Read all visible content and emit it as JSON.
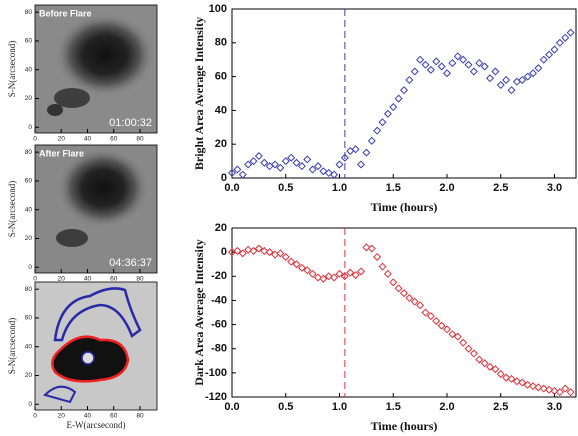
{
  "chart_data": [
    {
      "type": "image",
      "title": "Before Flare",
      "timestamp": "01:00:32",
      "ylabel": "S-N(arcsecond)",
      "xlim": [
        0,
        93
      ],
      "ylim": [
        -4,
        85
      ],
      "xticks": [
        0,
        20,
        40,
        60,
        80
      ],
      "yticks": [
        0,
        20,
        40,
        60,
        80
      ]
    },
    {
      "type": "image",
      "title": "After Flare",
      "timestamp": "04:36:37",
      "ylabel": "S-N(arcsecond)",
      "xlim": [
        0,
        93
      ],
      "ylim": [
        -4,
        85
      ],
      "xticks": [
        0,
        20,
        40,
        60,
        80
      ],
      "yticks": [
        0,
        20,
        40,
        60,
        80
      ]
    },
    {
      "type": "image",
      "ylabel": "S-N(arcsecond)",
      "xlabel": "E-W(arcsecond)",
      "xlim": [
        0,
        93
      ],
      "ylim": [
        -4,
        85
      ],
      "xticks": [
        0,
        20,
        40,
        60,
        80
      ],
      "yticks": [
        0,
        20,
        40,
        60,
        80
      ]
    },
    {
      "type": "scatter",
      "xlabel": "Time (hours)",
      "ylabel": "Bright Area Average Intensity",
      "xlim": [
        0,
        3.2
      ],
      "ylim": [
        0,
        100
      ],
      "xticks": [
        {
          "value": 0,
          "label": "0.0"
        },
        0.5,
        {
          "value": 1,
          "label": "1.0"
        },
        1.5,
        {
          "value": 2,
          "label": "2.0"
        },
        2.5,
        {
          "value": 3,
          "label": "3.0"
        }
      ],
      "yticks": [
        0,
        20,
        40,
        60,
        80,
        100
      ],
      "vline": 1.05,
      "series": [
        {
          "color": "#3a3eb4",
          "x": [
            0,
            0.05,
            0.1,
            0.15,
            0.2,
            0.25,
            0.3,
            0.35,
            0.4,
            0.45,
            0.5,
            0.55,
            0.6,
            0.65,
            0.7,
            0.75,
            0.8,
            0.85,
            0.9,
            0.95,
            1,
            1.05,
            1.1,
            1.15,
            1.2,
            1.25,
            1.3,
            1.35,
            1.4,
            1.45,
            1.5,
            1.55,
            1.6,
            1.65,
            1.7,
            1.75,
            1.8,
            1.85,
            1.9,
            1.95,
            2,
            2.05,
            2.1,
            2.15,
            2.2,
            2.25,
            2.3,
            2.35,
            2.4,
            2.45,
            2.5,
            2.55,
            2.6,
            2.65,
            2.7,
            2.75,
            2.8,
            2.85,
            2.9,
            2.95,
            3,
            3.05,
            3.1,
            3.15
          ],
          "values": [
            3,
            5,
            2,
            8,
            10,
            13,
            9,
            7,
            8,
            6,
            10,
            12,
            9,
            7,
            11,
            5,
            7,
            4,
            3,
            2,
            8,
            12,
            16,
            17,
            8,
            15,
            22,
            28,
            33,
            38,
            42,
            47,
            52,
            58,
            63,
            70,
            67,
            64,
            69,
            66,
            62,
            68,
            72,
            70,
            67,
            63,
            68,
            66,
            59,
            63,
            55,
            58,
            52,
            57,
            58,
            60,
            62,
            65,
            70,
            73,
            76,
            80,
            83,
            86
          ]
        }
      ]
    },
    {
      "type": "scatter",
      "xlabel": "Time (hours)",
      "ylabel": "Dark Area Average Intensity",
      "xlim": [
        0,
        3.2
      ],
      "ylim": [
        -120,
        20
      ],
      "xticks": [
        {
          "value": 0,
          "label": "0.0"
        },
        0.5,
        {
          "value": 1,
          "label": "1.0"
        },
        1.5,
        {
          "value": 2,
          "label": "2.0"
        },
        2.5,
        {
          "value": 3,
          "label": "3.0"
        }
      ],
      "yticks": [
        -120,
        -100,
        -80,
        -60,
        -40,
        -20,
        0,
        20
      ],
      "vline": 1.05,
      "series": [
        {
          "color": "#e0303a",
          "x": [
            0,
            0.05,
            0.1,
            0.15,
            0.2,
            0.25,
            0.3,
            0.35,
            0.4,
            0.45,
            0.5,
            0.55,
            0.6,
            0.65,
            0.7,
            0.75,
            0.8,
            0.85,
            0.9,
            0.95,
            1,
            1.05,
            1.1,
            1.15,
            1.2,
            1.25,
            1.3,
            1.35,
            1.4,
            1.45,
            1.5,
            1.55,
            1.6,
            1.65,
            1.7,
            1.75,
            1.8,
            1.85,
            1.9,
            1.95,
            2,
            2.05,
            2.1,
            2.15,
            2.2,
            2.25,
            2.3,
            2.35,
            2.4,
            2.45,
            2.5,
            2.55,
            2.6,
            2.65,
            2.7,
            2.75,
            2.8,
            2.85,
            2.9,
            2.95,
            3,
            3.05,
            3.1,
            3.15
          ],
          "values": [
            0,
            1,
            -1,
            2,
            1,
            3,
            1,
            0,
            -2,
            -1,
            -4,
            -8,
            -10,
            -13,
            -15,
            -18,
            -21,
            -22,
            -20,
            -21,
            -18,
            -20,
            -17,
            -19,
            -16,
            4,
            3,
            -4,
            -12,
            -18,
            -25,
            -30,
            -34,
            -38,
            -41,
            -44,
            -50,
            -53,
            -57,
            -61,
            -64,
            -68,
            -70,
            -75,
            -80,
            -84,
            -89,
            -92,
            -95,
            -97,
            -101,
            -104,
            -105,
            -107,
            -108,
            -110,
            -111,
            -112,
            -113,
            -114,
            -115,
            -116,
            -113,
            -116
          ]
        }
      ]
    }
  ]
}
